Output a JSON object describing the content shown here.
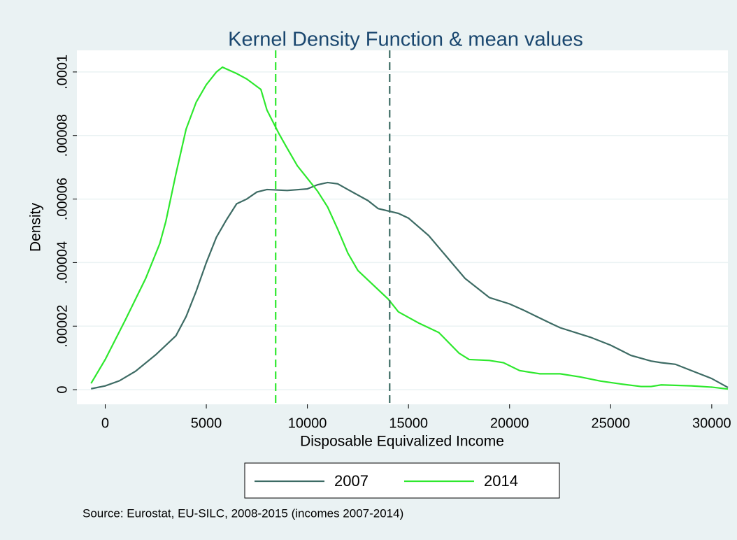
{
  "chart_data": {
    "type": "line",
    "title": "Kernel Density Function & mean values",
    "x_label": "Disposable Equivalized Income",
    "y_label": "Density",
    "note": "Source: Eurostat, EU-SILC, 2008-2015 (incomes 2007-2014)",
    "xlim": [
      -1400,
      30800
    ],
    "ylim": [
      -4.6e-06,
      0.0001068
    ],
    "xticks": [
      0,
      5000,
      10000,
      15000,
      20000,
      25000,
      30000
    ],
    "yticks": [
      0,
      {
        "value": 2e-05,
        "label": ".00002"
      },
      {
        "value": 4e-05,
        "label": ".00004"
      },
      {
        "value": 6e-05,
        "label": ".00006"
      },
      {
        "value": 8e-05,
        "label": ".00008"
      },
      {
        "value": 0.0001,
        "label": ".0001"
      }
    ],
    "grid": true,
    "series": [
      {
        "name": "2007",
        "color": "#3d6b64",
        "x": [
          -700,
          0,
          700,
          1500,
          2500,
          3500,
          4000,
          4500,
          5000,
          5500,
          6000,
          6500,
          7000,
          7500,
          8000,
          9000,
          10000,
          10500,
          11000,
          11500,
          12000,
          13000,
          13500,
          14500,
          15000,
          16000,
          17000,
          17800,
          18500,
          19000,
          20000,
          20700,
          22000,
          22500,
          24000,
          25000,
          26000,
          27000,
          27500,
          28200,
          29000,
          30000,
          30800
        ],
        "values": [
          3e-07,
          1.2e-06,
          2.8e-06,
          5.8e-06,
          1.1e-05,
          1.7e-05,
          2.3e-05,
          3.1e-05,
          4e-05,
          4.8e-05,
          5.35e-05,
          5.85e-05,
          6e-05,
          6.22e-05,
          6.3e-05,
          6.27e-05,
          6.32e-05,
          6.45e-05,
          6.52e-05,
          6.48e-05,
          6.3e-05,
          5.95e-05,
          5.7e-05,
          5.55e-05,
          5.4e-05,
          4.85e-05,
          4.1e-05,
          3.5e-05,
          3.15e-05,
          2.9e-05,
          2.7e-05,
          2.5e-05,
          2.1e-05,
          1.95e-05,
          1.65e-05,
          1.4e-05,
          1.08e-05,
          9e-06,
          8.5e-06,
          8e-06,
          6e-06,
          3.5e-06,
          7e-07
        ]
      },
      {
        "name": "2014",
        "color": "#2de82d",
        "x": [
          -700,
          0,
          1000,
          2000,
          2700,
          3000,
          3500,
          4000,
          4500,
          5000,
          5500,
          5800,
          6500,
          7000,
          7700,
          8000,
          8600,
          9000,
          9500,
          10000,
          10500,
          11000,
          11500,
          12000,
          12500,
          13000,
          14000,
          14500,
          15500,
          16500,
          17500,
          18000,
          19000,
          19700,
          20500,
          21500,
          22500,
          23500,
          24500,
          25500,
          26500,
          27000,
          27500,
          29000,
          30000,
          30800
        ],
        "values": [
          2e-06,
          9.5e-06,
          2.2e-05,
          3.5e-05,
          4.6e-05,
          5.3e-05,
          6.8e-05,
          8.2e-05,
          9.05e-05,
          9.6e-05,
          0.0001,
          0.0001015,
          9.95e-05,
          9.78e-05,
          9.45e-05,
          8.8e-05,
          8.05e-05,
          7.6e-05,
          7.05e-05,
          6.65e-05,
          6.25e-05,
          5.75e-05,
          5.05e-05,
          4.3e-05,
          3.75e-05,
          3.45e-05,
          2.85e-05,
          2.45e-05,
          2.1e-05,
          1.8e-05,
          1.15e-05,
          9.5e-06,
          9.2e-06,
          8.5e-06,
          6e-06,
          5e-06,
          5e-06,
          4e-06,
          2.7e-06,
          1.8e-06,
          1e-06,
          1e-06,
          1.5e-06,
          1.2e-06,
          8e-07,
          2e-07
        ]
      }
    ],
    "mean_lines": [
      {
        "value": 14070,
        "color": "#3d6b64"
      },
      {
        "value": 8430,
        "color": "#2de82d"
      }
    ]
  }
}
